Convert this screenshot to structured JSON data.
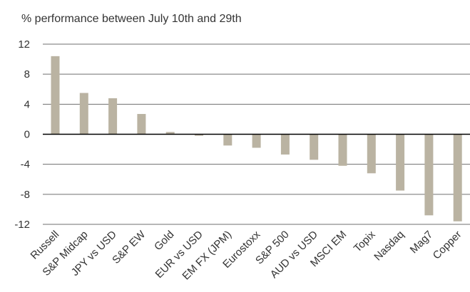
{
  "chart_data": {
    "type": "bar",
    "title": "% performance between July 10th and 29th",
    "xlabel": "",
    "ylabel": "",
    "categories": [
      "Russell",
      "S&P Midcap",
      "JPY vs USD",
      "S&P EW",
      "Gold",
      "EUR vs USD",
      "EM FX (JPM)",
      "Eurostoxx",
      "S&P 500",
      "AUD vs USD",
      "MSCI EM",
      "Topix",
      "Nasdaq",
      "Mag7",
      "Copper"
    ],
    "values": [
      10.4,
      5.5,
      4.8,
      2.7,
      0.3,
      -0.2,
      -1.5,
      -1.8,
      -2.7,
      -3.4,
      -4.2,
      -5.2,
      -7.5,
      -10.8,
      -11.6
    ],
    "ylim": [
      -12,
      12
    ],
    "yticks": [
      "12",
      "8",
      "4",
      "0",
      "-4",
      "-8",
      "-12"
    ],
    "ytick_values": [
      12,
      8,
      4,
      0,
      -4,
      -8,
      -12
    ],
    "grid": true,
    "legend": "none",
    "bar_color": "#bab3a2",
    "grid_color": "#6f6f6f",
    "zero_line_color": "#000000"
  }
}
